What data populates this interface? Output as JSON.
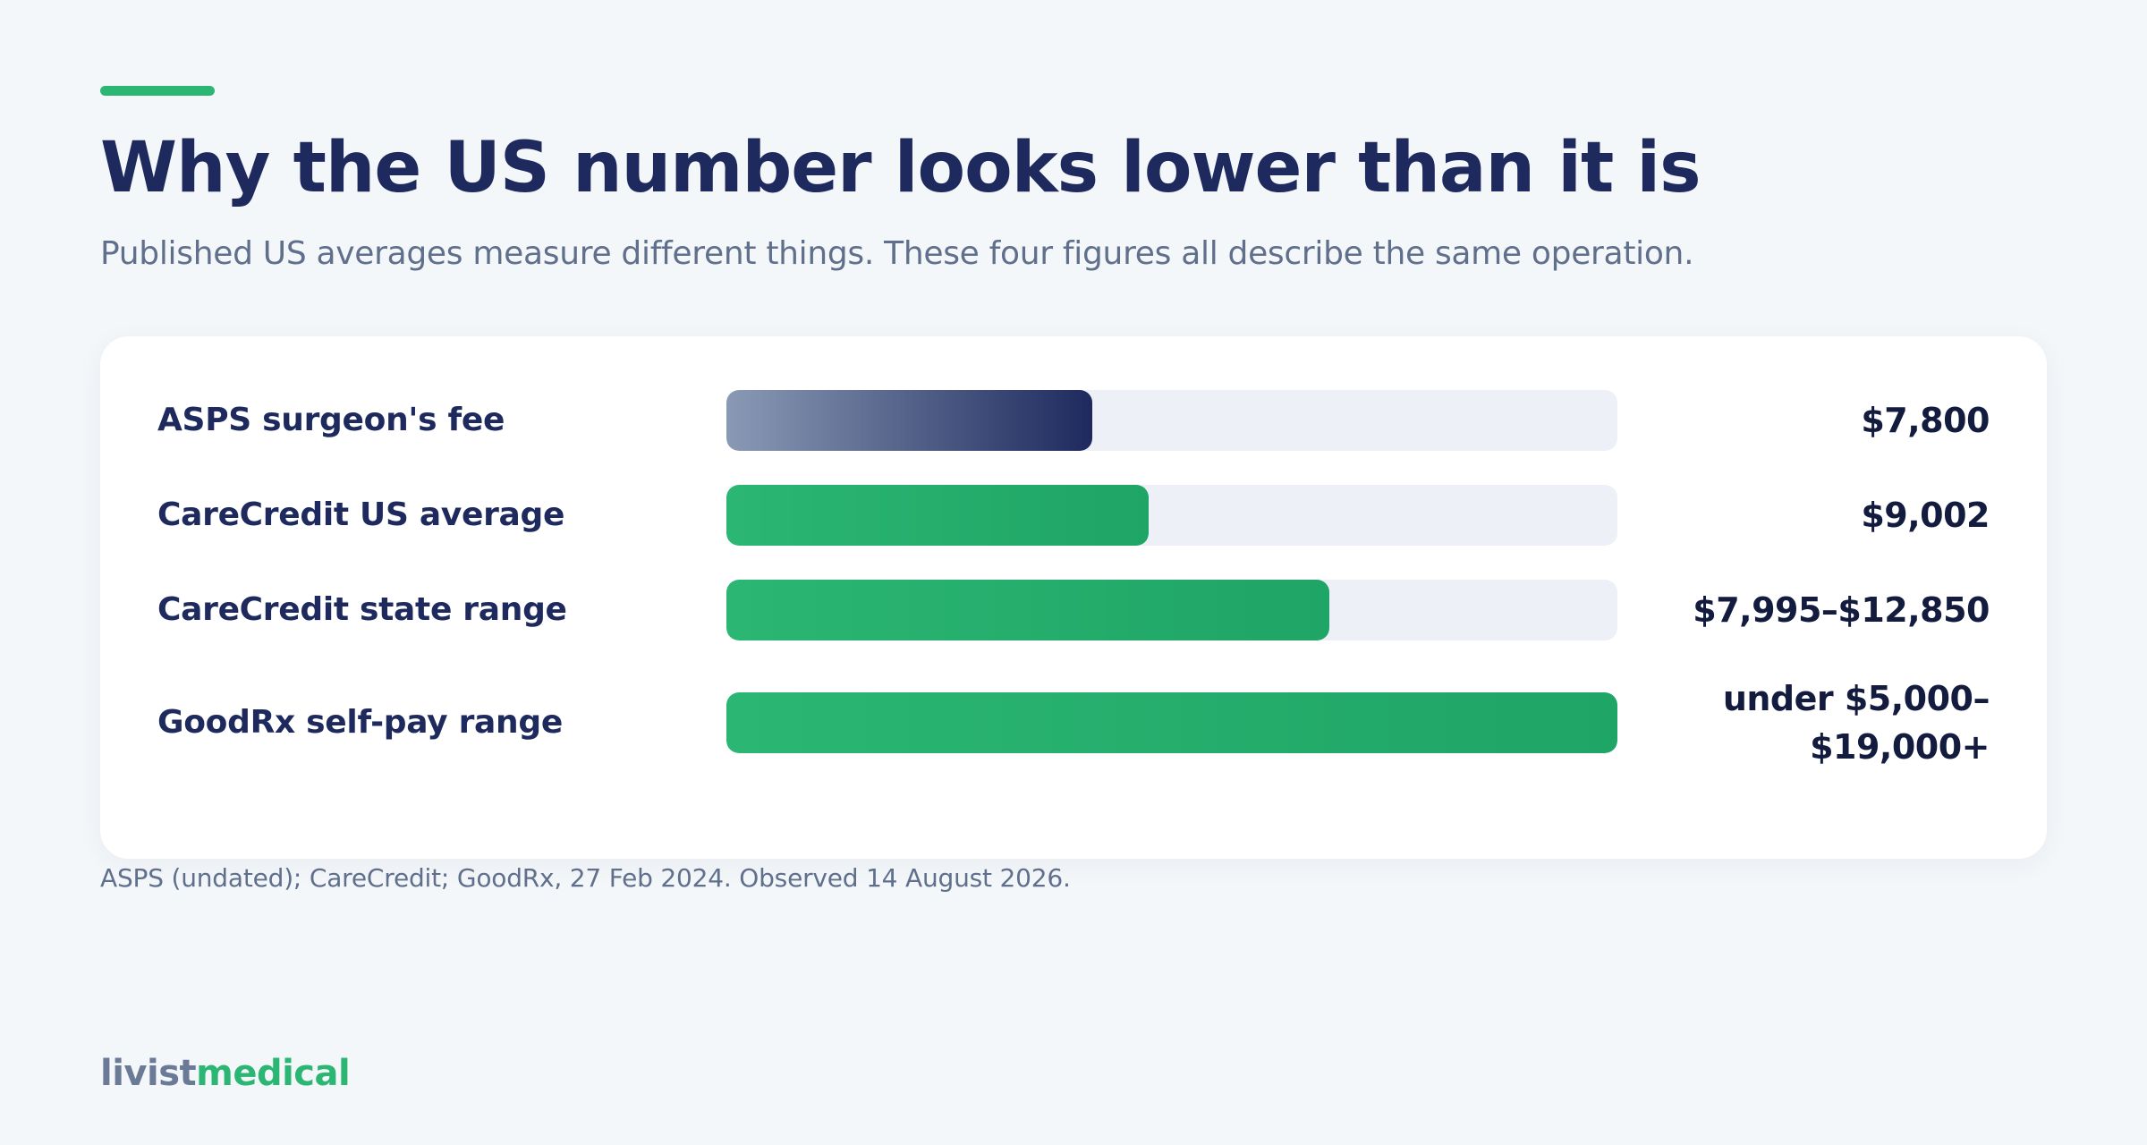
{
  "header": {
    "title": "Why the US number looks lower than it is",
    "subtitle": "Published US averages measure different things. These four figures all describe the same operation."
  },
  "footer": {
    "source": "ASPS (undated); CareCredit; GoodRx, 27 Feb 2024. Observed 14 August 2026.",
    "brand_part1": "livist",
    "brand_part2": "medical"
  },
  "colors": {
    "accent": "#2bb673",
    "navy": "#1e2a5e",
    "track": "#edf0f7",
    "background": "#f4f7f9"
  },
  "chart_data": {
    "type": "bar",
    "orientation": "horizontal",
    "title": "Why the US number looks lower than it is",
    "subtitle": "Published US averages measure different things. These four figures all describe the same operation.",
    "xlim": [
      0,
      19000
    ],
    "grid": false,
    "items": [
      {
        "label": "ASPS surgeon's fee",
        "value": 7800,
        "value_label": "$7,800",
        "color": "navy"
      },
      {
        "label": "CareCredit US average",
        "value": 9002,
        "value_label": "$9,002",
        "color": "green"
      },
      {
        "label": "CareCredit state range",
        "value": 12850,
        "value_label": "$7,995–$12,850",
        "color": "green"
      },
      {
        "label": "GoodRx self-pay range",
        "value": 19000,
        "value_label": "under $5,000–\n$19,000+",
        "color": "green"
      }
    ]
  }
}
